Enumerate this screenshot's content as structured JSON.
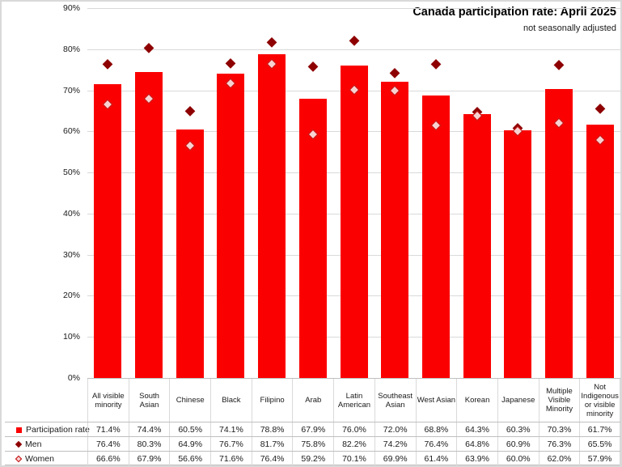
{
  "title": "Canada participation rate: April 2025",
  "subtitle": "not seasonally adjusted",
  "colors": {
    "bar": "#fb0000",
    "men": "#8e0000",
    "women_fill": "#f8d1d1",
    "women_border": "#c00000",
    "gridline": "#d9d9d9",
    "axis_line": "#bfbfbf",
    "text": "#1a1a1a"
  },
  "chart_data": {
    "type": "bar",
    "title": "Canada participation rate: April 2025",
    "subtitle": "not seasonally adjusted",
    "categories": [
      "All visible minority",
      "South Asian",
      "Chinese",
      "Black",
      "Filipino",
      "Arab",
      "Latin American",
      "Southeast Asian",
      "West Asian",
      "Korean",
      "Japanese",
      "Multiple Visible Minority",
      "Not Indigenous or visible minority"
    ],
    "series": [
      {
        "name": "Participation rate",
        "type": "bar",
        "marker": "square",
        "values": [
          71.4,
          74.4,
          60.5,
          74.1,
          78.8,
          67.9,
          76.0,
          72.0,
          68.8,
          64.3,
          60.3,
          70.3,
          61.7
        ]
      },
      {
        "name": "Men",
        "type": "scatter",
        "marker": "diamond-filled",
        "values": [
          76.4,
          80.3,
          64.9,
          76.7,
          81.7,
          75.8,
          82.2,
          74.2,
          76.4,
          64.8,
          60.9,
          76.3,
          65.5
        ]
      },
      {
        "name": "Women",
        "type": "scatter",
        "marker": "diamond-outline",
        "values": [
          66.6,
          67.9,
          56.6,
          71.6,
          76.4,
          59.2,
          70.1,
          69.9,
          61.4,
          63.9,
          60.0,
          62.0,
          57.9
        ]
      }
    ],
    "ylabel": "",
    "xlabel": "",
    "ylim": [
      0,
      90
    ],
    "ytick_step": 10,
    "ytick_labels": [
      "0%",
      "10%",
      "20%",
      "30%",
      "40%",
      "50%",
      "60%",
      "70%",
      "80%",
      "90%"
    ],
    "grid": true,
    "legend_position": "table-rows-left",
    "value_suffix": "%"
  }
}
